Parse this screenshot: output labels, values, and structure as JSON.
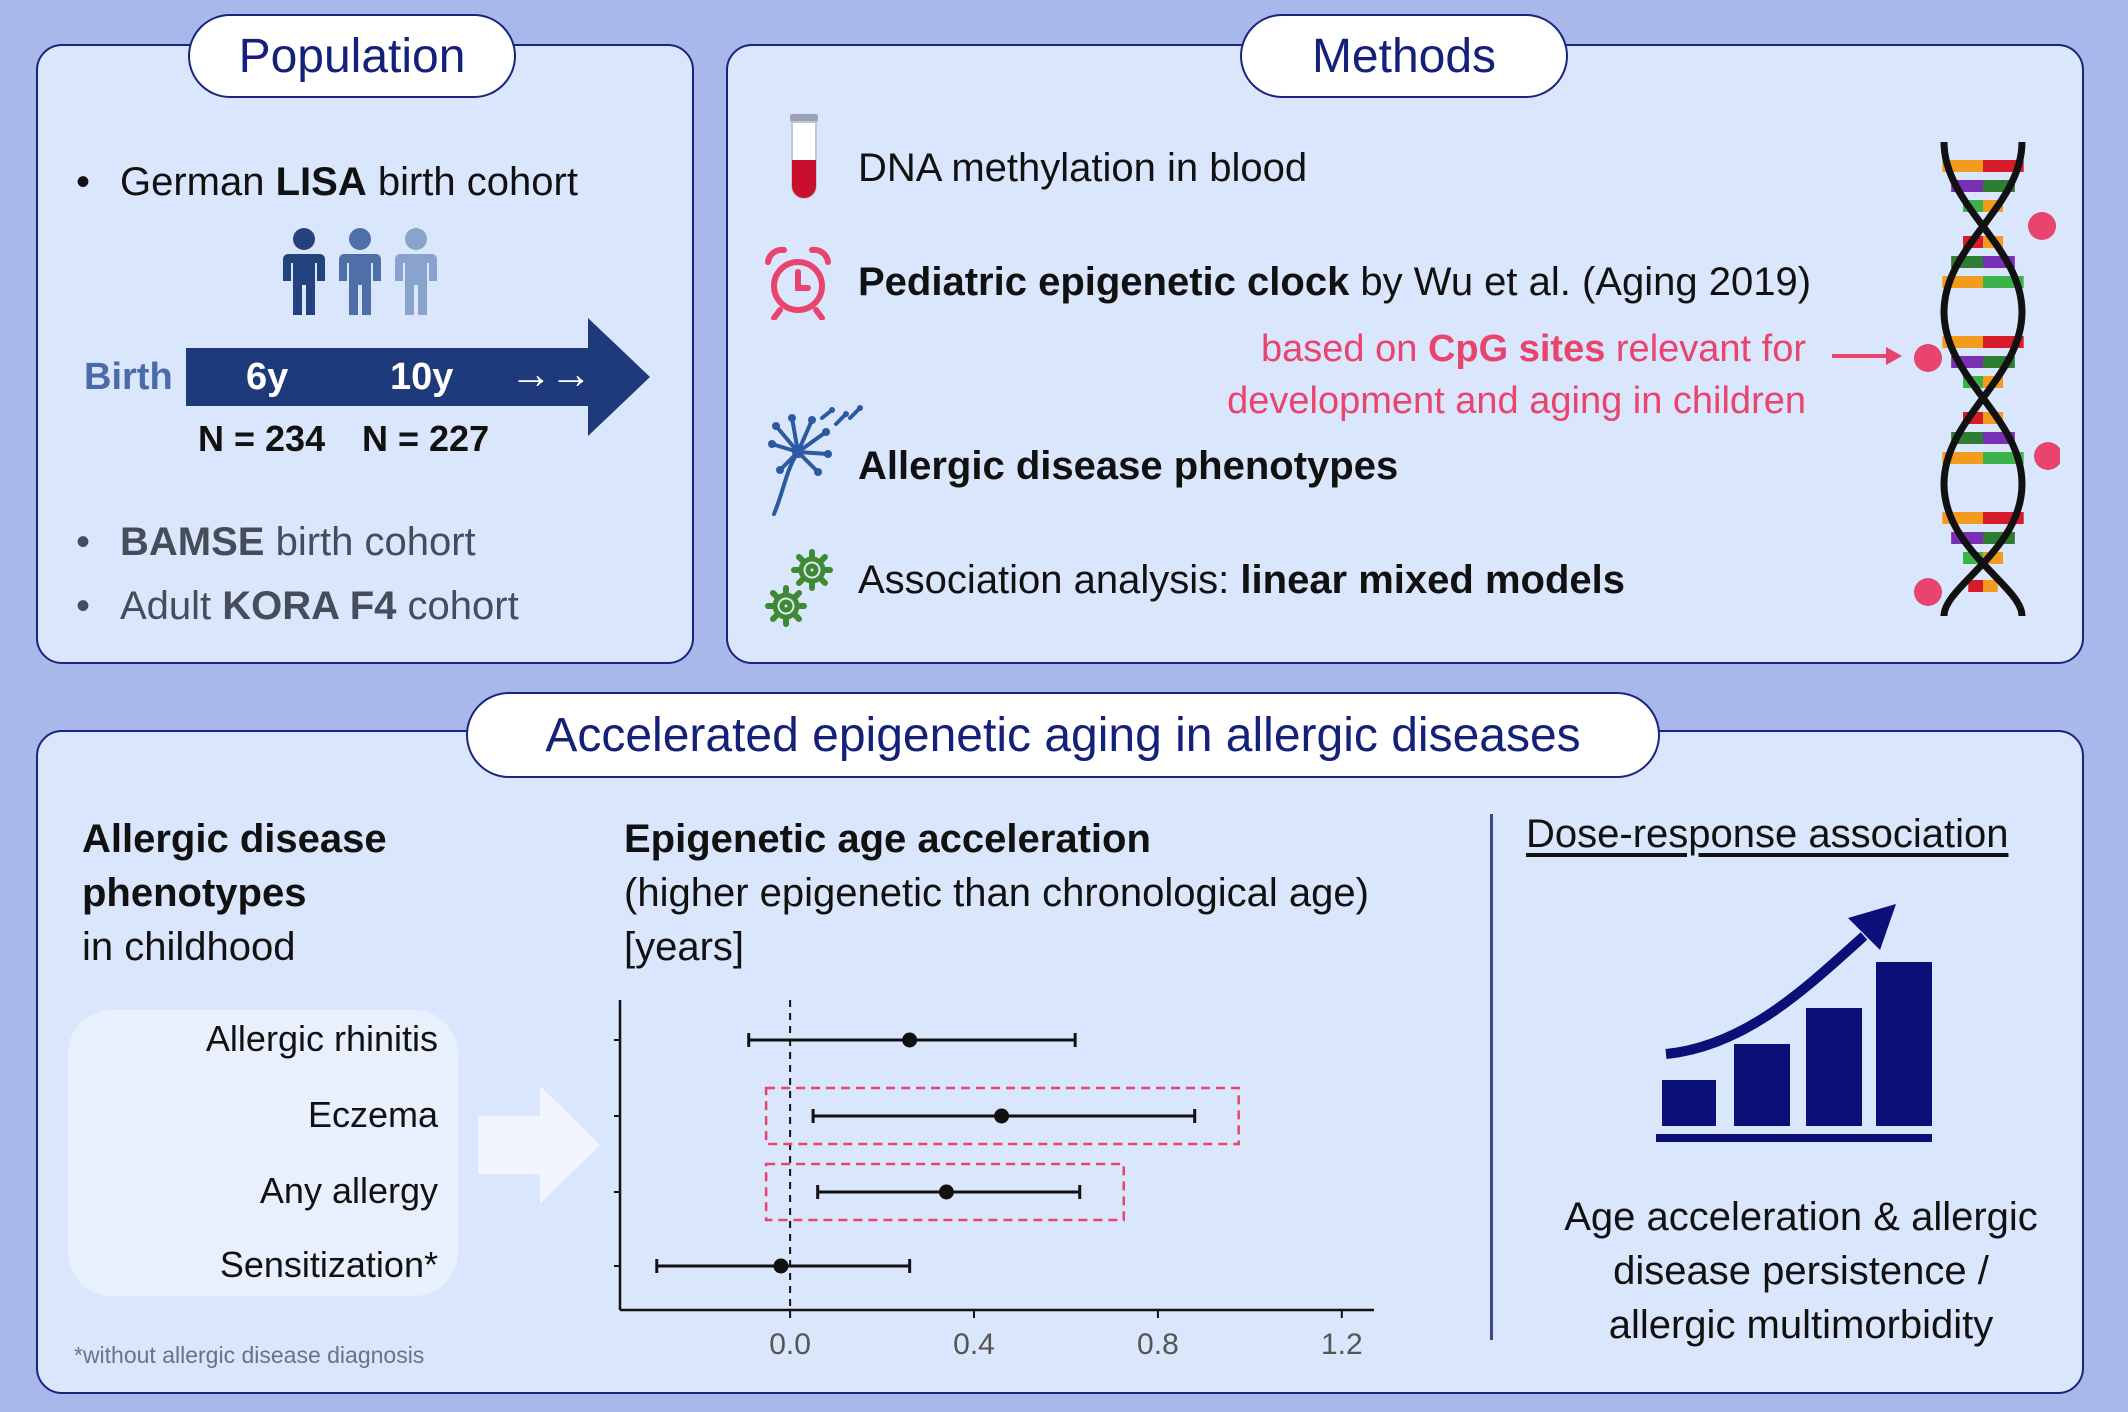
{
  "population": {
    "title": "Population",
    "lisa_prefix": "German ",
    "lisa_bold": "LISA",
    "lisa_suffix": " birth cohort",
    "birth_label": "Birth",
    "age_6": "6y",
    "age_10": "10y",
    "n_6": "N = 234",
    "n_10": "N = 227",
    "bamse_bold": "BAMSE",
    "bamse_suffix": " birth cohort",
    "kora_prefix": "Adult ",
    "kora_bold": "KORA F4",
    "kora_suffix": " cohort",
    "bullet": "•",
    "arrow_glyphs": "→→"
  },
  "methods": {
    "title": "Methods",
    "item1": "DNA methylation in blood",
    "item2_bold": "Pediatric epigenetic clock",
    "item2_rest": " by Wu et al. (Aging 2019)",
    "cpg_line1_a": "based on ",
    "cpg_line1_bold": "CpG sites",
    "cpg_line1_b": " relevant for",
    "cpg_line2": "development and aging in children",
    "item3_bold": "Allergic disease phenotypes",
    "item4_prefix": "Association analysis: ",
    "item4_bold": "linear mixed models"
  },
  "results": {
    "title": "Accelerated epigenetic aging in allergic diseases",
    "phen_bold1": "Allergic disease",
    "phen_bold2": "phenotypes",
    "phen_line3": "in childhood",
    "eaa_title": "Epigenetic age acceleration",
    "eaa_line2": "(higher epigenetic than chronological age)",
    "eaa_line3": "[years]",
    "footnote": "*without allergic disease diagnosis",
    "dose_title": "Dose-response association",
    "dose_line1": "Age acceleration & allergic",
    "dose_line2": "disease persistence /",
    "dose_line3": "allergic multimorbidity"
  },
  "colors": {
    "navy": "#1a237e",
    "arrow_navy": "#1f3a7a",
    "pink": "#e8446e",
    "panel": "#dae6fb",
    "background": "#a9b8ea"
  },
  "chart_data": {
    "type": "forest",
    "categories": [
      "Allergic rhinitis",
      "Eczema",
      "Any allergy",
      "Sensitization*"
    ],
    "estimates": [
      0.26,
      0.46,
      0.34,
      -0.02
    ],
    "lower": [
      -0.09,
      0.05,
      0.06,
      -0.29
    ],
    "upper": [
      0.62,
      0.88,
      0.63,
      0.26
    ],
    "highlighted": [
      false,
      true,
      true,
      false
    ],
    "xlim": [
      -0.37,
      1.27
    ],
    "xticks": [
      0.0,
      0.4,
      0.8,
      1.2
    ],
    "xtick_labels": [
      "0.0",
      "0.4",
      "0.8",
      "1.2"
    ],
    "reference_line": 0.0
  }
}
